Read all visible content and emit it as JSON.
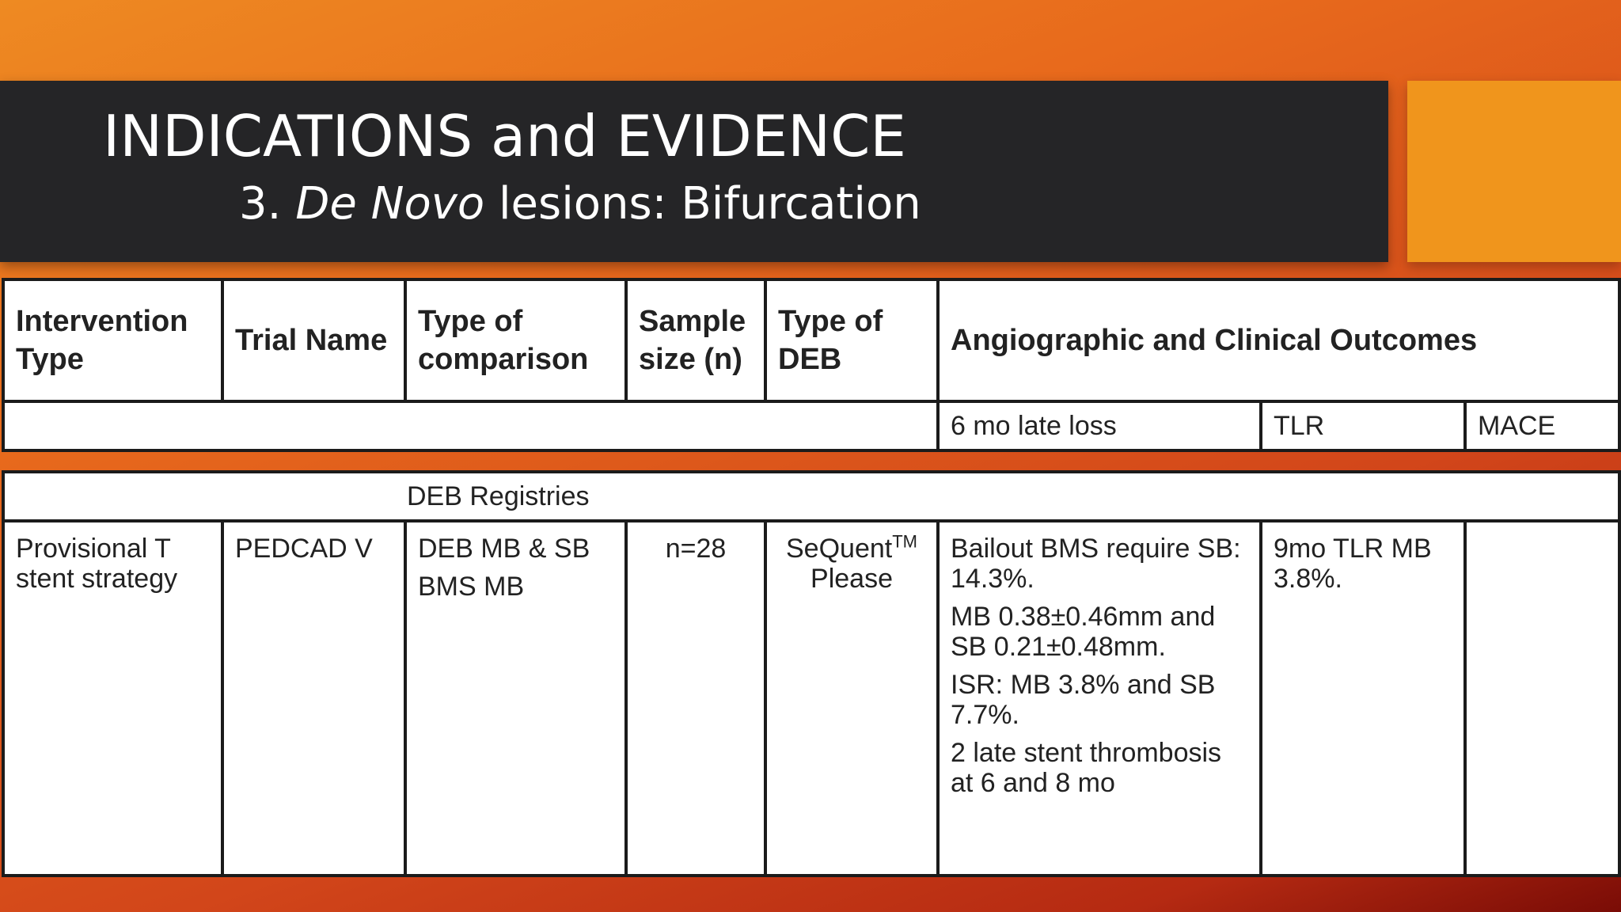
{
  "slide": {
    "title": "INDICATIONS and EVIDENCE",
    "subtitle_number": "3.",
    "subtitle_italic": "De Novo",
    "subtitle_rest": "lesions: Bifurcation",
    "colors": {
      "background_start": "#ee8a22",
      "background_end": "#7a0c06",
      "title_bar": "#252527",
      "accent_box": "#f0951c",
      "table_border": "#1b1b1b"
    }
  },
  "table": {
    "headers": {
      "intervention_type": "Intervention Type",
      "trial_name": "Trial Name",
      "type_of_comparison": "Type of comparison",
      "sample_size": "Sample size (n)",
      "type_of_deb": "Type of DEB",
      "outcomes": "Angiographic and Clinical Outcomes"
    },
    "subheaders": {
      "late_loss": "6 mo late loss",
      "tlr": "TLR",
      "mace": "MACE"
    },
    "group_label": "DEB Registries",
    "row": {
      "intervention_type": "Provisional T stent strategy",
      "trial_name": "PEDCAD V",
      "comparison_line1": "DEB MB & SB",
      "comparison_line2": "BMS MB",
      "sample_size": "n=28",
      "deb_name": "SeQuent",
      "deb_trademark": "TM",
      "deb_name2": "Please",
      "outcomes": [
        "Bailout BMS require SB: 14.3%.",
        "MB 0.38±0.46mm and SB 0.21±0.48mm.",
        "ISR: MB 3.8% and SB 7.7%.",
        "2 late stent thrombosis at 6 and 8 mo"
      ],
      "tlr": "9mo TLR MB 3.8%.",
      "mace": ""
    }
  }
}
